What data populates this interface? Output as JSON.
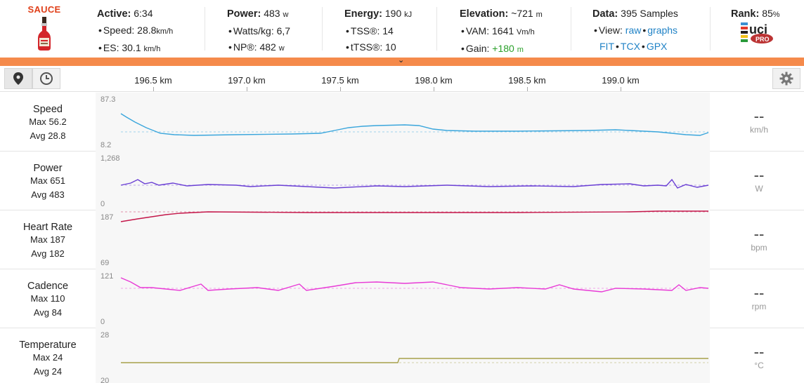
{
  "header": {
    "logo_text": "SAUCE",
    "active": {
      "title": "Active:",
      "value": "6:34",
      "speed_label": "Speed:",
      "speed_value": "28.8",
      "speed_unit": "km/h",
      "es_label": "ES:",
      "es_value": "30.1",
      "es_unit": "km/h"
    },
    "power": {
      "title": "Power:",
      "value": "483",
      "unit": "w",
      "wkg_label": "Watts/kg:",
      "wkg_value": "6,7",
      "np_label": "NP®:",
      "np_value": "482",
      "np_unit": "w"
    },
    "energy": {
      "title": "Energy:",
      "value": "190",
      "unit": "kJ",
      "tss_label": "TSS®:",
      "tss_value": "14",
      "ttss_label": "tTSS®:",
      "ttss_value": "10"
    },
    "elevation": {
      "title": "Elevation:",
      "value": "~721",
      "unit": "m",
      "vam_label": "VAM:",
      "vam_value": "1641",
      "vam_unit": "Vm/h",
      "gain_label": "Gain:",
      "gain_value": "+180",
      "gain_unit": "m"
    },
    "data": {
      "title": "Data:",
      "value": "395 Samples",
      "view_label": "View:",
      "raw": "raw",
      "graphs": "graphs",
      "fit": "FIT",
      "tcx": "TCX",
      "gpx": "GPX"
    },
    "rank": {
      "title": "Rank:",
      "value": "85",
      "unit": "%",
      "badge_text": "uci",
      "badge_sub": "PRO"
    }
  },
  "toolbar": {
    "km_labels": [
      "196.5 km",
      "197.0 km",
      "197.5 km",
      "198.0 km",
      "198.5 km",
      "199.0 km"
    ]
  },
  "rows": [
    {
      "metric": "Speed",
      "max_label": "Max",
      "max": "56.2",
      "avg_label": "Avg",
      "avg": "28.8",
      "axis_max": "87.3",
      "axis_min": "8.2",
      "current": "--",
      "unit": "km/h",
      "color": "#3aa6dc"
    },
    {
      "metric": "Power",
      "max_label": "Max",
      "max": "651",
      "avg_label": "Avg",
      "avg": "483",
      "axis_max": "1,268",
      "axis_min": "0",
      "current": "--",
      "unit": "W",
      "color": "#6a3fd4"
    },
    {
      "metric": "Heart Rate",
      "max_label": "Max",
      "max": "187",
      "avg_label": "Avg",
      "avg": "182",
      "axis_max": "187",
      "axis_min": "69",
      "current": "--",
      "unit": "bpm",
      "color": "#c4174a"
    },
    {
      "metric": "Cadence",
      "max_label": "Max",
      "max": "110",
      "avg_label": "Avg",
      "avg": "84",
      "axis_max": "121",
      "axis_min": "0",
      "current": "--",
      "unit": "rpm",
      "color": "#e83ad6"
    },
    {
      "metric": "Temperature",
      "max_label": "Max",
      "max": "24",
      "avg_label": "Avg",
      "avg": "24",
      "axis_max": "28",
      "axis_min": "20",
      "current": "--",
      "unit": "°C",
      "color": "#a7a04a"
    }
  ],
  "colors": {
    "accent": "#f58a4b",
    "brand_red": "#e0401a",
    "link": "#1f82c6",
    "gain_green": "#2aa02a"
  },
  "icons": {
    "map": "map-pin-icon",
    "time": "clock-icon",
    "settings": "gear-icon",
    "expand": "chevron-down-icon"
  }
}
